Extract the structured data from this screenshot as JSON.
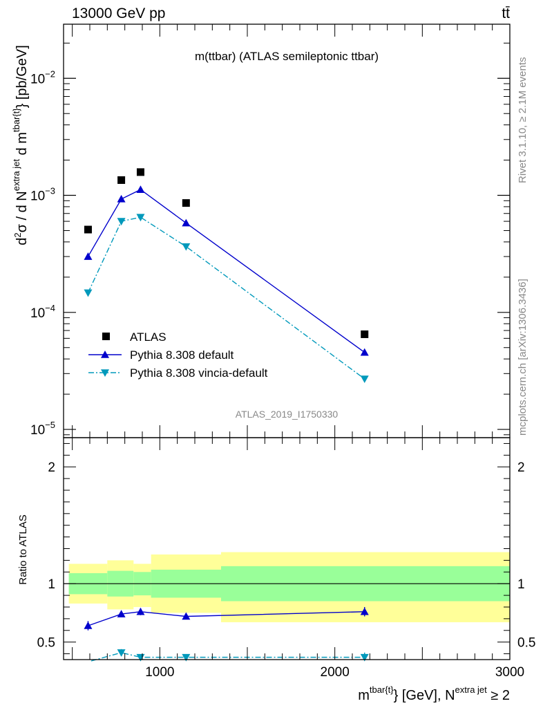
{
  "header": {
    "energy_label": "13000 GeV pp",
    "process_label": "tt̄"
  },
  "side_labels": {
    "rivet": "Rivet 3.1.10, ≥ 2.1M events",
    "mcplots": "mcplots.cern.ch [arXiv:1306.3436]"
  },
  "colors": {
    "atlas": "#000000",
    "pythia_default": "#0000cc",
    "pythia_vincia": "#0099bb",
    "band_inner": "#99ff99",
    "band_outer": "#ffff99"
  },
  "chart_data": [
    {
      "type": "scatter",
      "panel": "main",
      "title": "m(ttbar) (ATLAS semileptonic ttbar)",
      "ylabel": "d²σ / d N^{extra jet} d m^{tbar{t}} [pb/GeV]",
      "yscale": "log",
      "ylim": [
        8.5e-06,
        0.029
      ],
      "xlim": [
        450,
        3000
      ],
      "yticks": [
        {
          "value": 1e-05,
          "base": "10",
          "exp": "−5"
        },
        {
          "value": 0.0001,
          "base": "10",
          "exp": "−4"
        },
        {
          "value": 0.001,
          "base": "10",
          "exp": "−3"
        },
        {
          "value": 0.01,
          "base": "10",
          "exp": "−2"
        }
      ],
      "analysis_label": "ATLAS_2019_I1750330",
      "legend_position": "bottom-left",
      "series": [
        {
          "name": "ATLAS",
          "marker": "square",
          "x": [
            590,
            780,
            890,
            1150,
            2170
          ],
          "y": [
            0.00051,
            0.00135,
            0.00158,
            0.00086,
            6.5e-05
          ]
        },
        {
          "name": "Pythia 8.308 default",
          "marker": "triangle-up",
          "line": "solid",
          "x": [
            590,
            780,
            890,
            1150,
            2170
          ],
          "y": [
            0.0003,
            0.00093,
            0.00112,
            0.00058,
            4.55e-05
          ]
        },
        {
          "name": "Pythia 8.308 vincia-default",
          "marker": "triangle-down",
          "line": "dashdot",
          "x": [
            590,
            780,
            890,
            1150,
            2170
          ],
          "y": [
            0.000147,
            0.0006,
            0.00065,
            0.000365,
            2.7e-05
          ]
        }
      ]
    },
    {
      "type": "scatter",
      "panel": "ratio",
      "ylabel": "Ratio to ATLAS",
      "xlabel": "m^{tbar{t}} [GeV], N^{extra jet} ≥ 2",
      "ylim": [
        0.35,
        2.25
      ],
      "xlim": [
        450,
        3000
      ],
      "yticks": [
        {
          "value": 0.5,
          "label": "0.5"
        },
        {
          "value": 1,
          "label": "1"
        },
        {
          "value": 2,
          "label": "2"
        }
      ],
      "xticks": [
        {
          "value": 1000,
          "label": "1000"
        },
        {
          "value": 2000,
          "label": "2000"
        },
        {
          "value": 3000,
          "label": "3000"
        }
      ],
      "bands": {
        "edges": [
          480,
          700,
          850,
          950,
          1350,
          3000
        ],
        "inner_low": [
          0.91,
          0.89,
          0.9,
          0.88,
          0.85
        ],
        "inner_high": [
          1.09,
          1.11,
          1.1,
          1.12,
          1.15
        ],
        "outer_low": [
          0.83,
          0.78,
          0.8,
          0.75,
          0.67
        ],
        "outer_high": [
          1.17,
          1.2,
          1.17,
          1.25,
          1.27
        ]
      },
      "series": [
        {
          "name": "Pythia 8.308 default",
          "x": [
            590,
            780,
            890,
            1150,
            2170
          ],
          "y": [
            0.64,
            0.74,
            0.76,
            0.72,
            0.76
          ],
          "err": [
            0.04,
            0.025,
            0.03,
            0.015,
            0.04
          ]
        },
        {
          "name": "Pythia 8.308 vincia-default",
          "x": [
            780,
            890,
            1150,
            2170
          ],
          "y": [
            0.41,
            0.37,
            0.37,
            0.37
          ],
          "err": [
            0.03,
            0.025,
            0.015,
            0.04
          ]
        }
      ]
    }
  ]
}
